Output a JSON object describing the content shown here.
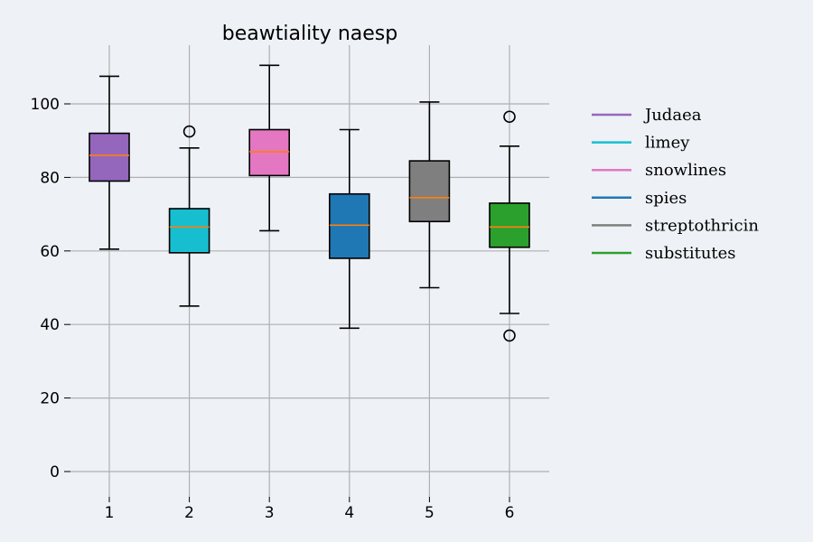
{
  "chart_data": {
    "type": "boxplot",
    "title": "beawtiality naesp",
    "xlabel": "",
    "ylabel": "",
    "categories": [
      "1",
      "2",
      "3",
      "4",
      "5",
      "6"
    ],
    "ylim": [
      -7,
      117
    ],
    "yticks": [
      0,
      20,
      40,
      60,
      80,
      100
    ],
    "grid": true,
    "legend_position": "right",
    "series": [
      {
        "name": "Judaea",
        "color": "#9467bd",
        "whisker_low": 60.5,
        "q1": 79,
        "median": 86,
        "q3": 92,
        "whisker_high": 107.5,
        "outliers": []
      },
      {
        "name": "limey",
        "color": "#17becf",
        "whisker_low": 45,
        "q1": 59.5,
        "median": 66.5,
        "q3": 71.5,
        "whisker_high": 88,
        "outliers": [
          92.5
        ]
      },
      {
        "name": "snowlines",
        "color": "#e377c2",
        "whisker_low": 65.5,
        "q1": 80.5,
        "median": 87,
        "q3": 93,
        "whisker_high": 110.5,
        "outliers": []
      },
      {
        "name": "spies",
        "color": "#1f77b4",
        "whisker_low": 39,
        "q1": 58,
        "median": 67,
        "q3": 75.5,
        "whisker_high": 93,
        "outliers": []
      },
      {
        "name": "streptothricin",
        "color": "#7f7f7f",
        "whisker_low": 50,
        "q1": 68,
        "median": 74.5,
        "q3": 84.5,
        "whisker_high": 100.5,
        "outliers": []
      },
      {
        "name": "substitutes",
        "color": "#2ca02c",
        "whisker_low": 43,
        "q1": 61,
        "median": 66.5,
        "q3": 73,
        "whisker_high": 88.5,
        "outliers": [
          96.5,
          37
        ]
      }
    ]
  }
}
